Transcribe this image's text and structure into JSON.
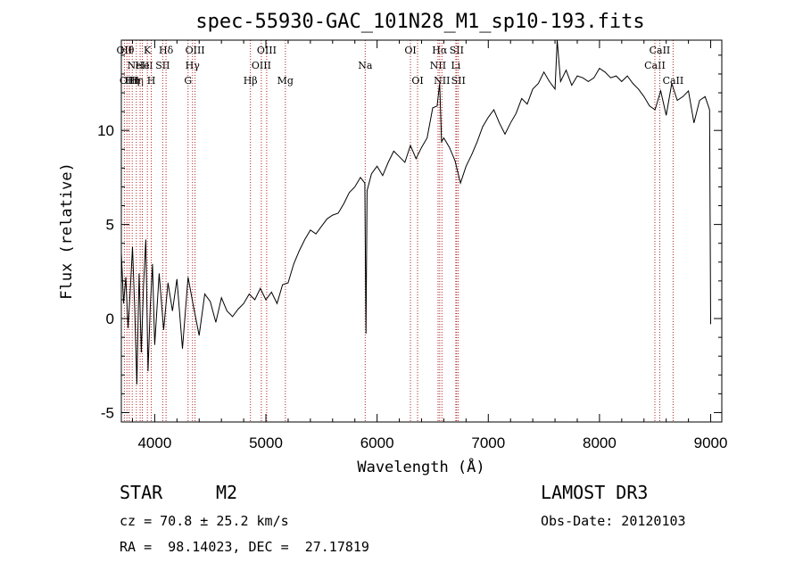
{
  "chart_data": {
    "type": "line",
    "title": "spec-55930-GAC_101N28_M1_sp10-193.fits",
    "xlabel": "Wavelength (Å)",
    "ylabel": "Flux (relative)",
    "xlim": [
      3700,
      9100
    ],
    "ylim": [
      -5.5,
      14.8
    ],
    "xticks": [
      4000,
      5000,
      6000,
      7000,
      8000,
      9000
    ],
    "yticks": [
      -5,
      0,
      5,
      10
    ],
    "series": [
      {
        "name": "spectrum",
        "x": [
          3700,
          3720,
          3740,
          3760,
          3780,
          3800,
          3820,
          3840,
          3860,
          3880,
          3900,
          3920,
          3940,
          3960,
          3980,
          4000,
          4040,
          4080,
          4120,
          4160,
          4200,
          4250,
          4300,
          4350,
          4400,
          4450,
          4500,
          4550,
          4600,
          4650,
          4700,
          4750,
          4800,
          4850,
          4900,
          4950,
          5000,
          5050,
          5100,
          5150,
          5200,
          5250,
          5300,
          5350,
          5400,
          5450,
          5500,
          5550,
          5600,
          5650,
          5700,
          5750,
          5800,
          5850,
          5890,
          5900,
          5910,
          5950,
          6000,
          6050,
          6100,
          6150,
          6200,
          6250,
          6300,
          6350,
          6400,
          6450,
          6500,
          6540,
          6563,
          6580,
          6600,
          6650,
          6700,
          6750,
          6800,
          6850,
          6900,
          6950,
          7000,
          7050,
          7100,
          7150,
          7200,
          7250,
          7300,
          7350,
          7400,
          7450,
          7500,
          7550,
          7600,
          7620,
          7650,
          7700,
          7750,
          7800,
          7850,
          7900,
          7950,
          8000,
          8050,
          8100,
          8150,
          8200,
          8250,
          8300,
          8350,
          8400,
          8450,
          8500,
          8550,
          8600,
          8650,
          8700,
          8750,
          8800,
          8850,
          8900,
          8950,
          8990,
          9000
        ],
        "values": [
          3.5,
          0.8,
          2.2,
          -0.5,
          1.5,
          3.8,
          0.5,
          -3.5,
          2.4,
          -1.8,
          1.8,
          4.2,
          -2.8,
          0.6,
          2.9,
          -1.4,
          2.4,
          -0.6,
          1.9,
          0.4,
          2.1,
          -1.6,
          2.2,
          0.6,
          -0.9,
          1.3,
          0.9,
          -0.2,
          1.1,
          0.4,
          0.1,
          0.5,
          0.8,
          1.3,
          1.0,
          1.6,
          1.0,
          1.4,
          0.8,
          1.8,
          1.9,
          2.9,
          3.6,
          4.2,
          4.7,
          4.5,
          4.9,
          5.3,
          5.5,
          5.6,
          6.1,
          6.7,
          7.0,
          7.5,
          7.2,
          -0.8,
          6.8,
          7.7,
          8.1,
          7.6,
          8.3,
          8.9,
          8.6,
          8.3,
          9.2,
          8.5,
          9.1,
          9.6,
          11.2,
          11.3,
          12.5,
          9.4,
          9.6,
          9.1,
          8.4,
          7.2,
          8.1,
          8.7,
          9.4,
          10.2,
          10.7,
          11.1,
          10.4,
          9.8,
          10.4,
          10.9,
          11.7,
          11.4,
          12.2,
          12.5,
          13.1,
          12.6,
          12.2,
          14.8,
          12.6,
          13.2,
          12.4,
          12.9,
          12.8,
          12.6,
          12.8,
          13.3,
          13.1,
          12.8,
          12.9,
          12.6,
          12.9,
          12.5,
          12.2,
          11.8,
          11.3,
          11.1,
          12.1,
          10.8,
          12.5,
          11.6,
          11.8,
          12.1,
          10.4,
          11.6,
          11.8,
          11.1,
          -0.3
        ]
      }
    ],
    "lines": [
      {
        "wave": 3727,
        "rows": [
          "OII"
        ]
      },
      {
        "wave": 3750,
        "rows": [
          "Hθ"
        ]
      },
      {
        "wave": 3771,
        "rows": [
          "",
          "",
          "OIII"
        ]
      },
      {
        "wave": 3798,
        "rows": [
          "",
          "",
          "Hη"
        ]
      },
      {
        "wave": 3835,
        "rows": [
          "",
          "",
          "Hη"
        ]
      },
      {
        "wave": 3869,
        "rows": [
          "",
          "NeIII"
        ]
      },
      {
        "wave": 3889,
        "rows": [
          "",
          "He"
        ]
      },
      {
        "wave": 3934,
        "rows": [
          "K"
        ]
      },
      {
        "wave": 3969,
        "rows": [
          "",
          "",
          "H"
        ]
      },
      {
        "wave": 4072,
        "rows": [
          "",
          "SII"
        ]
      },
      {
        "wave": 4102,
        "rows": [
          "Hδ"
        ]
      },
      {
        "wave": 4300,
        "rows": [
          "",
          "",
          "G"
        ]
      },
      {
        "wave": 4340,
        "rows": [
          "",
          "Hγ"
        ]
      },
      {
        "wave": 4363,
        "rows": [
          "OIII"
        ]
      },
      {
        "wave": 4861,
        "rows": [
          "",
          "",
          "Hβ"
        ]
      },
      {
        "wave": 4959,
        "rows": [
          "",
          "OIII"
        ]
      },
      {
        "wave": 5007,
        "rows": [
          "OIII"
        ]
      },
      {
        "wave": 5175,
        "rows": [
          "",
          "",
          "Mg"
        ]
      },
      {
        "wave": 5893,
        "rows": [
          "",
          "Na"
        ]
      },
      {
        "wave": 6300,
        "rows": [
          "OI"
        ]
      },
      {
        "wave": 6364,
        "rows": [
          "",
          "",
          "OI"
        ]
      },
      {
        "wave": 6548,
        "rows": [
          "",
          "NII"
        ]
      },
      {
        "wave": 6563,
        "rows": [
          "Hα"
        ]
      },
      {
        "wave": 6583,
        "rows": [
          "",
          "",
          "NII"
        ]
      },
      {
        "wave": 6708,
        "rows": [
          "",
          "Li"
        ]
      },
      {
        "wave": 6716,
        "rows": [
          "SII"
        ]
      },
      {
        "wave": 6731,
        "rows": [
          "",
          "",
          "SII"
        ]
      },
      {
        "wave": 8498,
        "rows": [
          "",
          "CaII"
        ]
      },
      {
        "wave": 8542,
        "rows": [
          "CaII"
        ]
      },
      {
        "wave": 8662,
        "rows": [
          "",
          "",
          "CaII"
        ]
      }
    ]
  },
  "info": {
    "type_label": "STAR",
    "subclass": "M2",
    "survey": "LAMOST DR3",
    "redshift": "cz = 70.8 ± 25.2 km/s",
    "obs_date": "Obs-Date: 20120103",
    "coords": "RA =  98.14023, DEC =  27.17819"
  }
}
